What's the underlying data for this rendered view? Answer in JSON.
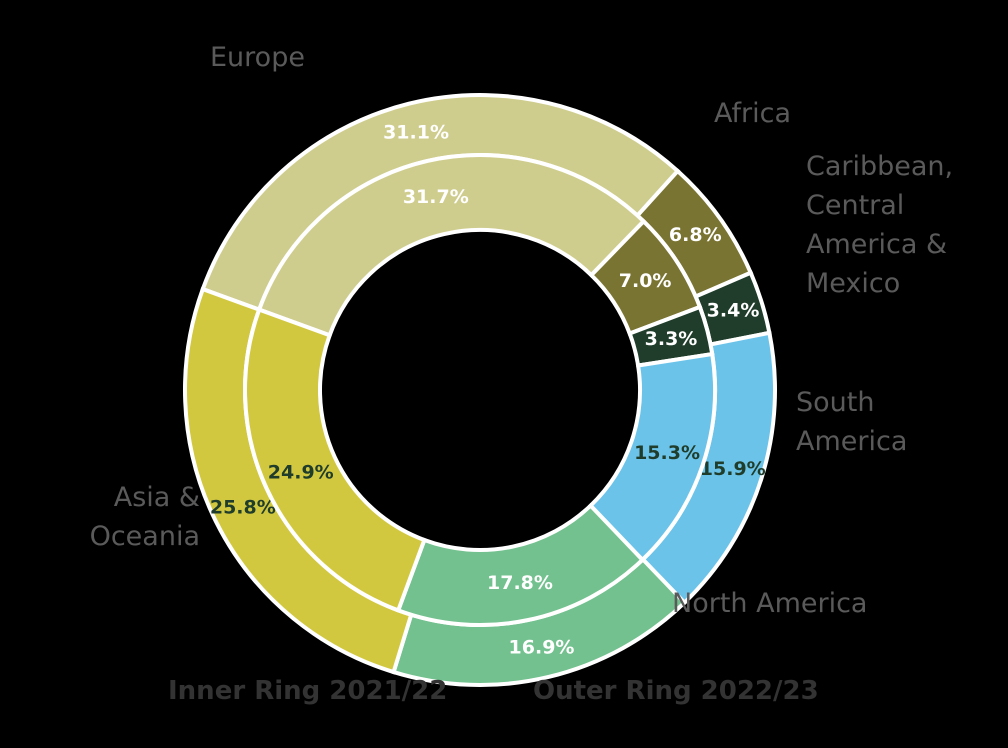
{
  "chart_data": {
    "type": "donut",
    "categories": [
      "Europe",
      "Africa",
      "Caribbean, Central America & Mexico",
      "South America",
      "North America",
      "Asia & Oceania"
    ],
    "colors": [
      "#cfcd8e",
      "#7a7432",
      "#1f3d2a",
      "#6cc3ea",
      "#72c18e",
      "#d2c840"
    ],
    "label_colors": [
      "#ffffff",
      "#ffffff",
      "#ffffff",
      "#1f3d2a",
      "#ffffff",
      "#1f3d2a"
    ],
    "series": [
      {
        "name": "Outer Ring 2022/23",
        "values": [
          31.1,
          6.8,
          3.4,
          15.9,
          16.9,
          25.8
        ],
        "value_labels": [
          "31.1%",
          "6.8%",
          "3.4%",
          "15.9%",
          "16.9%",
          "25.8%"
        ]
      },
      {
        "name": "Inner Ring 2021/22",
        "values": [
          31.7,
          7.0,
          3.3,
          15.3,
          17.8,
          24.9
        ],
        "value_labels": [
          "31.7%",
          "7.0%",
          "3.3%",
          "15.3%",
          "17.8%",
          "24.9%"
        ]
      }
    ]
  }
}
